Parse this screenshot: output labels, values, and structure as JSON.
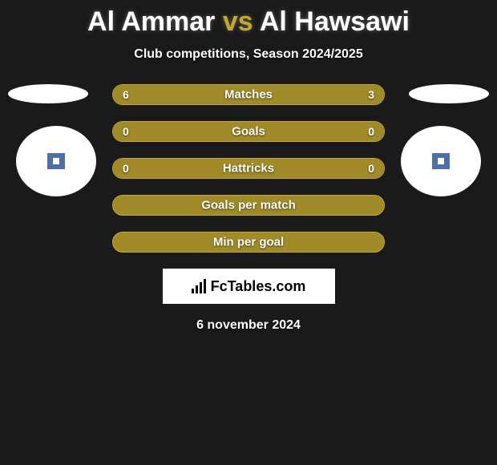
{
  "title": {
    "player1": "Al Ammar",
    "vs": "vs",
    "player2": "Al Hawsawi"
  },
  "subtitle": "Club competitions, Season 2024/2025",
  "stats": [
    {
      "label": "Matches",
      "left_val": "6",
      "right_val": "3",
      "left_pct": 66.7,
      "right_pct": 33.3
    },
    {
      "label": "Goals",
      "left_val": "0",
      "right_val": "0",
      "left_pct": 50,
      "right_pct": 50
    },
    {
      "label": "Hattricks",
      "left_val": "0",
      "right_val": "0",
      "left_pct": 50,
      "right_pct": 50
    },
    {
      "label": "Goals per match",
      "left_val": "",
      "right_val": "",
      "left_pct": 100,
      "right_pct": 0,
      "full": true
    },
    {
      "label": "Min per goal",
      "left_val": "",
      "right_val": "",
      "left_pct": 100,
      "right_pct": 0,
      "full": true
    }
  ],
  "badge_text": "FcTables.com",
  "date": "6 november 2024",
  "colors": {
    "accent": "#c4a82e",
    "bar_fill": "#a08b28",
    "bg": "#1a1a1a",
    "text": "#ffffff"
  }
}
